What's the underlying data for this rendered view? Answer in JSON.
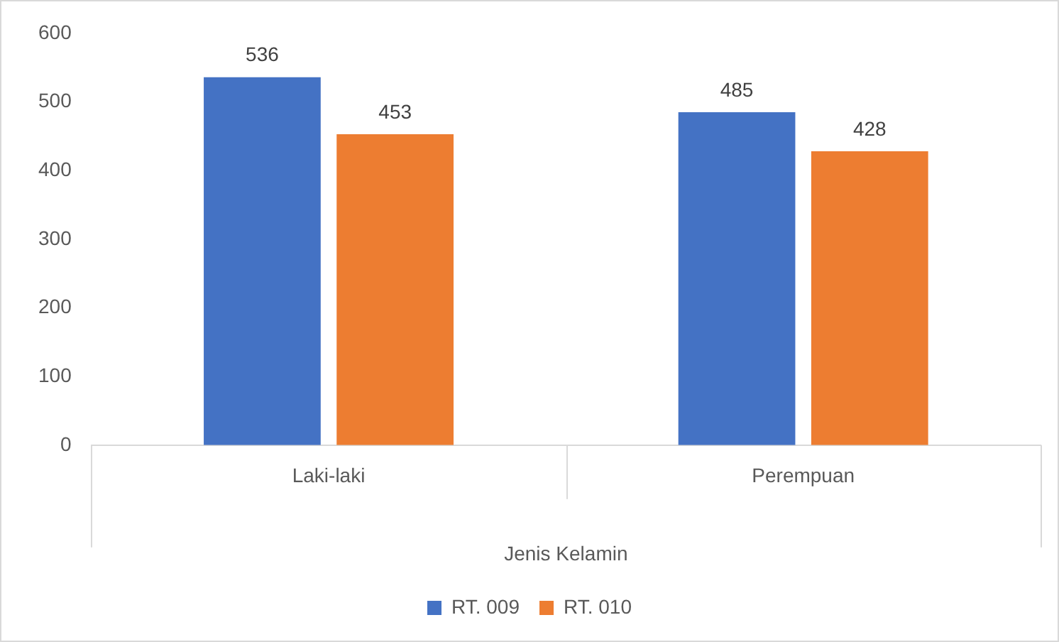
{
  "chart_data": {
    "type": "bar",
    "xlabel": "Jenis Kelamin",
    "categories": [
      "Laki-laki",
      "Perempuan"
    ],
    "series": [
      {
        "name": "RT. 009",
        "color": "#4472c4",
        "values": [
          536,
          485
        ]
      },
      {
        "name": "RT. 010",
        "color": "#ed7d31",
        "values": [
          453,
          428
        ]
      }
    ],
    "ylim": [
      0,
      600
    ],
    "yticks": [
      0,
      100,
      200,
      300,
      400,
      500,
      600
    ],
    "grid": false,
    "legend": "bottom",
    "data_labels": true
  }
}
